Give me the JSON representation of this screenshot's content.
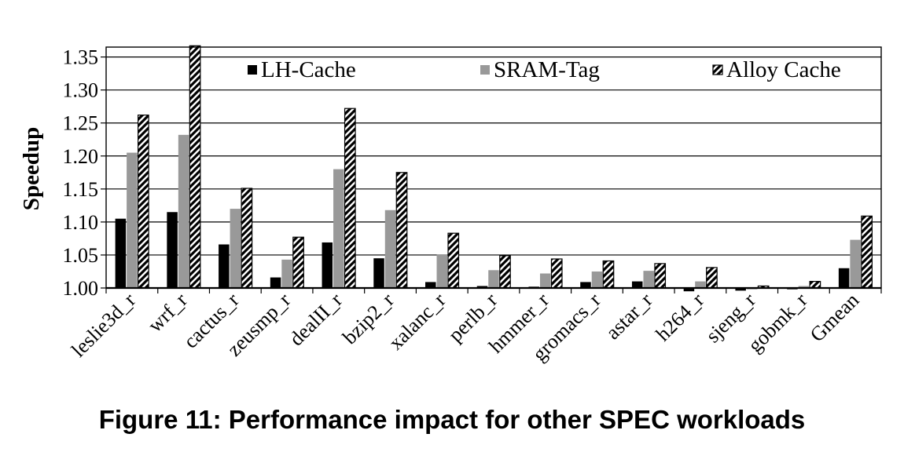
{
  "figure": {
    "caption": "Figure 11: Performance impact for other SPEC workloads"
  },
  "chart_data": {
    "type": "bar",
    "title": "",
    "xlabel": "",
    "ylabel": "Speedup",
    "ylim": [
      1.0,
      1.35
    ],
    "yticks": [
      "1.00",
      "1.05",
      "1.10",
      "1.15",
      "1.20",
      "1.25",
      "1.30",
      "1.35"
    ],
    "grid": true,
    "legend_position": "top",
    "categories": [
      "leslie3d_r",
      "wrf_r",
      "cactus_r",
      "zeusmp_r",
      "dealII_r",
      "bzip2_r",
      "xalanc_r",
      "perlb_r",
      "hmmer_r",
      "gromacs_r",
      "astar_r",
      "h264_r",
      "sjeng_r",
      "gobmk_r",
      "Gmean"
    ],
    "series": [
      {
        "name": "LH-Cache",
        "color": "#000000",
        "pattern": "solid",
        "values": [
          1.105,
          1.115,
          1.066,
          1.016,
          1.069,
          1.045,
          1.009,
          1.003,
          1.002,
          1.009,
          1.01,
          0.995,
          0.996,
          0.998,
          1.03
        ]
      },
      {
        "name": "SRAM-Tag",
        "color": "#999999",
        "pattern": "solid",
        "values": [
          1.205,
          1.232,
          1.12,
          1.043,
          1.18,
          1.118,
          1.051,
          1.027,
          1.022,
          1.025,
          1.026,
          1.01,
          0.998,
          1.003,
          1.073
        ]
      },
      {
        "name": "Alloy Cache",
        "color": "#000000",
        "pattern": "diagonal-hatch",
        "values": [
          1.262,
          1.367,
          1.151,
          1.077,
          1.272,
          1.175,
          1.083,
          1.049,
          1.044,
          1.041,
          1.037,
          1.031,
          1.003,
          1.01,
          1.109
        ]
      }
    ]
  }
}
